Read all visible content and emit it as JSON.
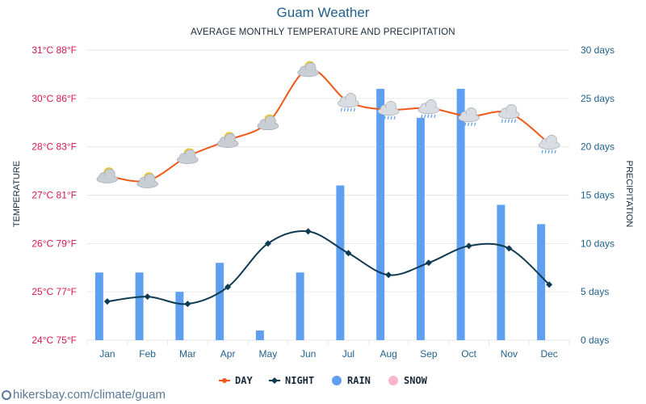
{
  "header": {
    "title": "Guam Weather",
    "subtitle": "AVERAGE MONTHLY TEMPERATURE AND PRECIPITATION"
  },
  "watermark": "hikersbay.com/climate/guam",
  "colors": {
    "day": "#ef5a1a",
    "night": "#0e3a52",
    "rain": "#5ea0ef",
    "snow": "#f7b6cc",
    "left_axis": "#d6174f",
    "right_axis": "#1f5f8b",
    "grid": "#e6e6e6"
  },
  "chart_data": {
    "type": "bar",
    "title": "Guam Weather",
    "subtitle": "AVERAGE MONTHLY TEMPERATURE AND PRECIPITATION",
    "categories": [
      "Jan",
      "Feb",
      "Mar",
      "Apr",
      "May",
      "Jun",
      "Jul",
      "Aug",
      "Sep",
      "Oct",
      "Nov",
      "Dec"
    ],
    "ylabel": "TEMPERATURE",
    "y2label": "PRECIPITATION",
    "left_axis_ticks": [
      "24°C 75°F",
      "25°C 77°F",
      "26°C 79°F",
      "27°C 81°F",
      "28°C 83°F",
      "30°C 86°F",
      "31°C 88°F"
    ],
    "right_axis_ticks": [
      "0 days",
      "5 days",
      "10 days",
      "15 days",
      "20 days",
      "25 days",
      "30 days"
    ],
    "ylim_temp_f": [
      75,
      88
    ],
    "ylim_days": [
      0,
      30
    ],
    "grid": true,
    "legend_position": "bottom",
    "series": [
      {
        "name": "DAY",
        "type": "line",
        "unit": "°F",
        "values": [
          81.8,
          81.6,
          82.6,
          83.4,
          84.5,
          87.2,
          85.8,
          85.3,
          85.4,
          84.9,
          85.1,
          83.2
        ],
        "icons": [
          "partly-sunny",
          "partly-sunny",
          "partly-sunny",
          "partly-sunny",
          "partly-sunny",
          "partly-sunny",
          "rain-cloud",
          "rain-cloud",
          "rain-cloud",
          "rain-cloud",
          "rain-cloud",
          "rain-cloud"
        ]
      },
      {
        "name": "NIGHT",
        "type": "line",
        "unit": "°F",
        "values": [
          76.6,
          76.8,
          76.5,
          77.2,
          79.0,
          79.5,
          78.6,
          77.7,
          78.2,
          78.9,
          78.8,
          77.3
        ]
      },
      {
        "name": "RAIN",
        "type": "bar",
        "unit": "days",
        "values": [
          7,
          7,
          5,
          8,
          1,
          7,
          16,
          26,
          23,
          26,
          14,
          12
        ]
      },
      {
        "name": "SNOW",
        "type": "bar",
        "unit": "days",
        "values": [
          0,
          0,
          0,
          0,
          0,
          0,
          0,
          0,
          0,
          0,
          0,
          0
        ]
      }
    ]
  }
}
